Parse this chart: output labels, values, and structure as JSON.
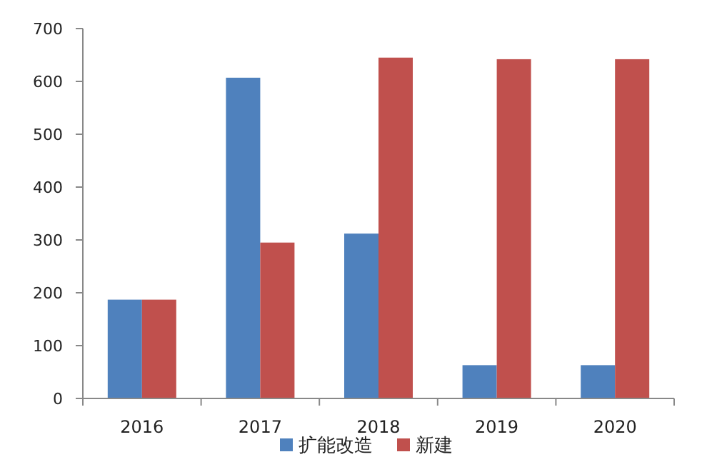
{
  "chart_data": {
    "type": "bar",
    "categories": [
      "2016",
      "2017",
      "2018",
      "2019",
      "2020"
    ],
    "series": [
      {
        "name": "扩能改造",
        "color": "#4f81bd",
        "values": [
          187,
          607,
          312,
          63,
          63
        ]
      },
      {
        "name": "新建",
        "color": "#c0504d",
        "values": [
          187,
          295,
          645,
          642,
          642
        ]
      }
    ],
    "ylim": [
      0,
      700
    ],
    "yticks": [
      0,
      100,
      200,
      300,
      400,
      500,
      600,
      700
    ],
    "legend": "bottom"
  }
}
